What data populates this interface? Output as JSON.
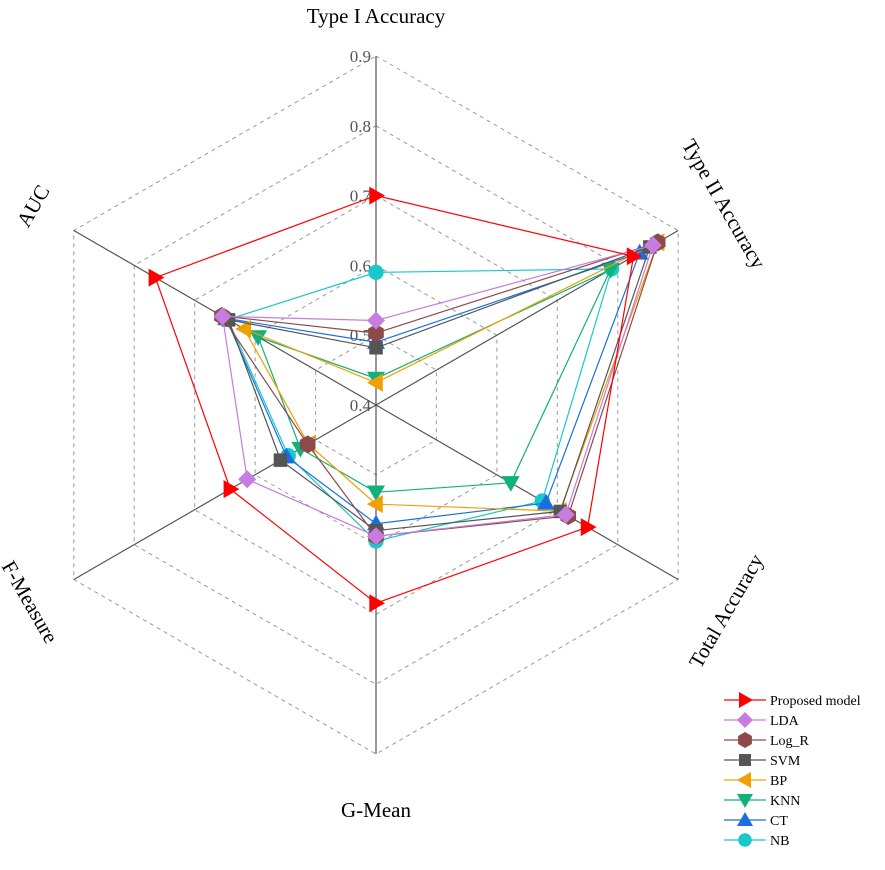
{
  "chart_data": {
    "type": "radar",
    "axes": [
      "Type I Accuracy",
      "Type II Accuracy",
      "Total Accuracy",
      "G-Mean",
      "F-Measure",
      "AUC"
    ],
    "rlim": [
      0.4,
      0.9
    ],
    "ticks": [
      "0.4",
      "0.5",
      "0.6",
      "0.7",
      "0.8",
      "0.9"
    ],
    "tick_values": [
      0.4,
      0.5,
      0.6,
      0.7,
      0.8,
      0.9
    ],
    "grid": true,
    "legend_position": "bottom-right",
    "series": [
      {
        "name": "Proposed model",
        "color": "#ff0000",
        "marker": "triangle-right",
        "values": [
          0.7,
          0.826,
          0.75,
          0.684,
          0.641,
          0.765
        ]
      },
      {
        "name": "LDA",
        "color": "#c77cdf",
        "marker": "diamond",
        "values": [
          0.521,
          0.858,
          0.714,
          0.588,
          0.613,
          0.654
        ]
      },
      {
        "name": "Log_R",
        "color": "#8c4a4a",
        "marker": "hexagon",
        "values": [
          0.503,
          0.866,
          0.718,
          0.588,
          0.513,
          0.655
        ]
      },
      {
        "name": "SVM",
        "color": "#555555",
        "marker": "square",
        "values": [
          0.482,
          0.853,
          0.705,
          0.58,
          0.558,
          0.644
        ]
      },
      {
        "name": "BP",
        "color": "#f0a000",
        "marker": "triangle-left",
        "values": [
          0.432,
          0.866,
          0.704,
          0.542,
          0.512,
          0.618
        ]
      },
      {
        "name": "KNN",
        "color": "#12b07a",
        "marker": "triangle-down",
        "values": [
          0.438,
          0.788,
          0.623,
          0.525,
          0.525,
          0.595
        ]
      },
      {
        "name": "CT",
        "color": "#1a6fe0",
        "marker": "triangle-up",
        "values": [
          0.49,
          0.836,
          0.681,
          0.57,
          0.548,
          0.648
        ]
      },
      {
        "name": "NB",
        "color": "#18c8cc",
        "marker": "circle",
        "values": [
          0.59,
          0.79,
          0.675,
          0.595,
          0.545,
          0.645
        ]
      }
    ]
  }
}
